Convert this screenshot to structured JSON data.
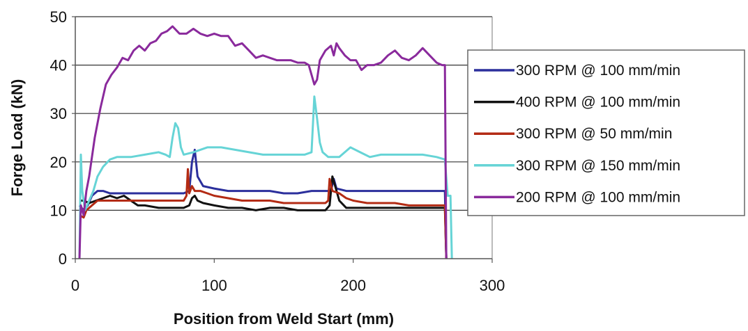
{
  "chart_data": {
    "type": "line",
    "title": "",
    "xlabel": "Position from Weld Start (mm)",
    "ylabel": "Forge Load (kN)",
    "xlim": [
      0,
      300
    ],
    "ylim": [
      0,
      50
    ],
    "x_ticks": [
      0,
      100,
      200,
      300
    ],
    "y_ticks": [
      0,
      10,
      20,
      30,
      40,
      50
    ],
    "grid": "horizontal",
    "legend_position": "right",
    "series": [
      {
        "name": "300 RPM @ 100 mm/min",
        "color": "#2b2f9c",
        "points": [
          [
            3,
            11
          ],
          [
            6,
            10
          ],
          [
            9,
            11
          ],
          [
            12,
            13
          ],
          [
            16,
            14
          ],
          [
            20,
            14
          ],
          [
            25,
            13.5
          ],
          [
            30,
            13.5
          ],
          [
            40,
            13.5
          ],
          [
            50,
            13.5
          ],
          [
            60,
            13.5
          ],
          [
            70,
            13.5
          ],
          [
            78,
            13.5
          ],
          [
            82,
            14
          ],
          [
            84,
            20
          ],
          [
            86,
            22.5
          ],
          [
            88,
            17
          ],
          [
            92,
            15
          ],
          [
            100,
            14.5
          ],
          [
            110,
            14
          ],
          [
            120,
            14
          ],
          [
            130,
            14
          ],
          [
            140,
            14
          ],
          [
            150,
            13.5
          ],
          [
            160,
            13.5
          ],
          [
            170,
            14
          ],
          [
            180,
            14
          ],
          [
            184,
            14
          ],
          [
            186,
            16.5
          ],
          [
            188,
            14.5
          ],
          [
            195,
            14
          ],
          [
            210,
            14
          ],
          [
            220,
            14
          ],
          [
            230,
            14
          ],
          [
            240,
            14
          ],
          [
            250,
            14
          ],
          [
            260,
            14
          ],
          [
            266,
            14
          ],
          [
            267,
            0
          ]
        ]
      },
      {
        "name": "400 RPM @ 100 mm/min",
        "color": "#111111",
        "points": [
          [
            3,
            12
          ],
          [
            6,
            12
          ],
          [
            10,
            11.5
          ],
          [
            15,
            12
          ],
          [
            20,
            12.5
          ],
          [
            25,
            13
          ],
          [
            30,
            12.5
          ],
          [
            35,
            13
          ],
          [
            40,
            12
          ],
          [
            45,
            11
          ],
          [
            50,
            11
          ],
          [
            60,
            10.5
          ],
          [
            70,
            10.5
          ],
          [
            78,
            10.5
          ],
          [
            82,
            11
          ],
          [
            84,
            12.5
          ],
          [
            86,
            13
          ],
          [
            88,
            12
          ],
          [
            92,
            11.5
          ],
          [
            100,
            11
          ],
          [
            110,
            10.5
          ],
          [
            120,
            10.5
          ],
          [
            130,
            10
          ],
          [
            140,
            10.5
          ],
          [
            150,
            10.5
          ],
          [
            160,
            10
          ],
          [
            170,
            10
          ],
          [
            180,
            10
          ],
          [
            183,
            11
          ],
          [
            185,
            17
          ],
          [
            187,
            15
          ],
          [
            190,
            12
          ],
          [
            195,
            10.5
          ],
          [
            210,
            10.5
          ],
          [
            220,
            10.5
          ],
          [
            230,
            10.5
          ],
          [
            240,
            10.5
          ],
          [
            250,
            10.5
          ],
          [
            260,
            10.5
          ],
          [
            266,
            10.5
          ],
          [
            267,
            0
          ]
        ]
      },
      {
        "name": "300 RPM @ 50 mm/min",
        "color": "#b32b14",
        "points": [
          [
            3,
            9
          ],
          [
            6,
            8.5
          ],
          [
            8,
            10
          ],
          [
            12,
            11
          ],
          [
            16,
            12
          ],
          [
            20,
            12
          ],
          [
            30,
            12
          ],
          [
            40,
            12
          ],
          [
            50,
            12
          ],
          [
            60,
            12
          ],
          [
            70,
            12
          ],
          [
            78,
            12
          ],
          [
            80,
            13
          ],
          [
            81,
            18.5
          ],
          [
            82,
            13.5
          ],
          [
            84,
            15
          ],
          [
            86,
            14
          ],
          [
            90,
            14
          ],
          [
            95,
            13.5
          ],
          [
            100,
            13
          ],
          [
            110,
            12.5
          ],
          [
            120,
            12
          ],
          [
            130,
            12
          ],
          [
            140,
            12
          ],
          [
            150,
            11.5
          ],
          [
            160,
            11.5
          ],
          [
            170,
            11.5
          ],
          [
            180,
            11.5
          ],
          [
            182,
            12
          ],
          [
            183,
            16.5
          ],
          [
            185,
            14
          ],
          [
            190,
            13.5
          ],
          [
            195,
            12.5
          ],
          [
            200,
            12
          ],
          [
            210,
            11.5
          ],
          [
            220,
            11.5
          ],
          [
            230,
            11.5
          ],
          [
            240,
            11
          ],
          [
            250,
            11
          ],
          [
            260,
            11
          ],
          [
            266,
            11
          ],
          [
            267,
            0
          ]
        ]
      },
      {
        "name": "300 RPM @ 150 mm/min",
        "color": "#66d4d6",
        "points": [
          [
            3,
            0
          ],
          [
            4,
            21.5
          ],
          [
            5,
            14
          ],
          [
            7,
            10
          ],
          [
            10,
            12
          ],
          [
            13,
            14
          ],
          [
            16,
            17
          ],
          [
            20,
            19
          ],
          [
            25,
            20.5
          ],
          [
            30,
            21
          ],
          [
            40,
            21
          ],
          [
            50,
            21.5
          ],
          [
            60,
            22
          ],
          [
            65,
            21.5
          ],
          [
            68,
            21
          ],
          [
            70,
            25
          ],
          [
            72,
            28
          ],
          [
            74,
            27
          ],
          [
            76,
            23
          ],
          [
            78,
            21.5
          ],
          [
            85,
            22
          ],
          [
            95,
            23
          ],
          [
            105,
            23
          ],
          [
            115,
            22.5
          ],
          [
            125,
            22
          ],
          [
            135,
            21.5
          ],
          [
            145,
            21.5
          ],
          [
            155,
            21.5
          ],
          [
            165,
            21.5
          ],
          [
            170,
            22
          ],
          [
            172,
            33.5
          ],
          [
            174,
            29
          ],
          [
            176,
            24
          ],
          [
            178,
            22
          ],
          [
            182,
            21
          ],
          [
            190,
            21
          ],
          [
            198,
            23
          ],
          [
            205,
            22
          ],
          [
            212,
            21
          ],
          [
            220,
            21.5
          ],
          [
            230,
            21.5
          ],
          [
            240,
            21.5
          ],
          [
            250,
            21.5
          ],
          [
            260,
            21
          ],
          [
            266,
            20.5
          ],
          [
            268,
            13
          ],
          [
            270,
            13
          ],
          [
            271,
            0
          ]
        ]
      },
      {
        "name": "200 RPM @ 100 mm/min",
        "color": "#8a2a9c",
        "points": [
          [
            3,
            0
          ],
          [
            4,
            11
          ],
          [
            6,
            9
          ],
          [
            8,
            14
          ],
          [
            10,
            17
          ],
          [
            14,
            25
          ],
          [
            18,
            31
          ],
          [
            22,
            36
          ],
          [
            26,
            38
          ],
          [
            30,
            39.5
          ],
          [
            34,
            41.5
          ],
          [
            38,
            41
          ],
          [
            42,
            43
          ],
          [
            46,
            44
          ],
          [
            50,
            43
          ],
          [
            54,
            44.5
          ],
          [
            58,
            45
          ],
          [
            62,
            46.5
          ],
          [
            66,
            47
          ],
          [
            70,
            48
          ],
          [
            75,
            46.5
          ],
          [
            80,
            46.5
          ],
          [
            85,
            47.5
          ],
          [
            90,
            46.5
          ],
          [
            95,
            46
          ],
          [
            100,
            46.5
          ],
          [
            105,
            46
          ],
          [
            110,
            46
          ],
          [
            115,
            44
          ],
          [
            120,
            44.5
          ],
          [
            125,
            43
          ],
          [
            130,
            41.5
          ],
          [
            135,
            42
          ],
          [
            140,
            41.5
          ],
          [
            145,
            41
          ],
          [
            150,
            41
          ],
          [
            155,
            41
          ],
          [
            160,
            40.5
          ],
          [
            165,
            40.5
          ],
          [
            168,
            40
          ],
          [
            170,
            38
          ],
          [
            172,
            36
          ],
          [
            174,
            37
          ],
          [
            176,
            41
          ],
          [
            180,
            43
          ],
          [
            184,
            44
          ],
          [
            186,
            42
          ],
          [
            188,
            44.5
          ],
          [
            190,
            43.5
          ],
          [
            194,
            42
          ],
          [
            198,
            41
          ],
          [
            202,
            41
          ],
          [
            206,
            39
          ],
          [
            210,
            40
          ],
          [
            215,
            40
          ],
          [
            220,
            40.5
          ],
          [
            225,
            42
          ],
          [
            230,
            43
          ],
          [
            235,
            41.5
          ],
          [
            240,
            41
          ],
          [
            245,
            42
          ],
          [
            250,
            43.5
          ],
          [
            255,
            42
          ],
          [
            260,
            40.5
          ],
          [
            264,
            40
          ],
          [
            266,
            40
          ],
          [
            267,
            0
          ]
        ]
      }
    ]
  }
}
